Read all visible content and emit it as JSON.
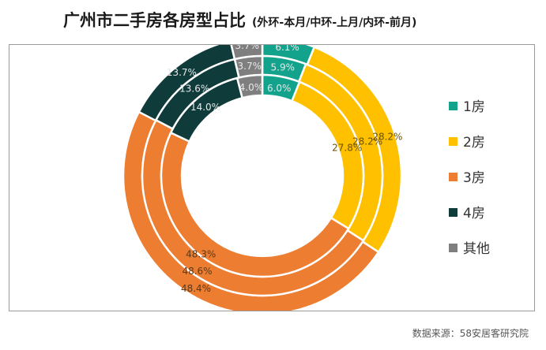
{
  "title": "广州市二手房各房型占比",
  "subtitle": "(外环-本月/中环-上月/内环-前月)",
  "source": "数据来源：58安居客研究院",
  "chart_data": {
    "type": "donut",
    "categories": [
      "1房",
      "2房",
      "3房",
      "4房",
      "其他"
    ],
    "colors": [
      "#13a38c",
      "#ffc000",
      "#ed7d31",
      "#0f3b3b",
      "#7f7f7f"
    ],
    "rings": [
      {
        "ring": "outer",
        "values": [
          6.1,
          28.2,
          48.4,
          13.7,
          3.7
        ]
      },
      {
        "ring": "middle",
        "values": [
          5.9,
          28.2,
          48.6,
          13.6,
          3.7
        ]
      },
      {
        "ring": "inner",
        "values": [
          6.0,
          27.8,
          48.3,
          14.0,
          4.0
        ]
      }
    ],
    "legend_position": "right"
  }
}
